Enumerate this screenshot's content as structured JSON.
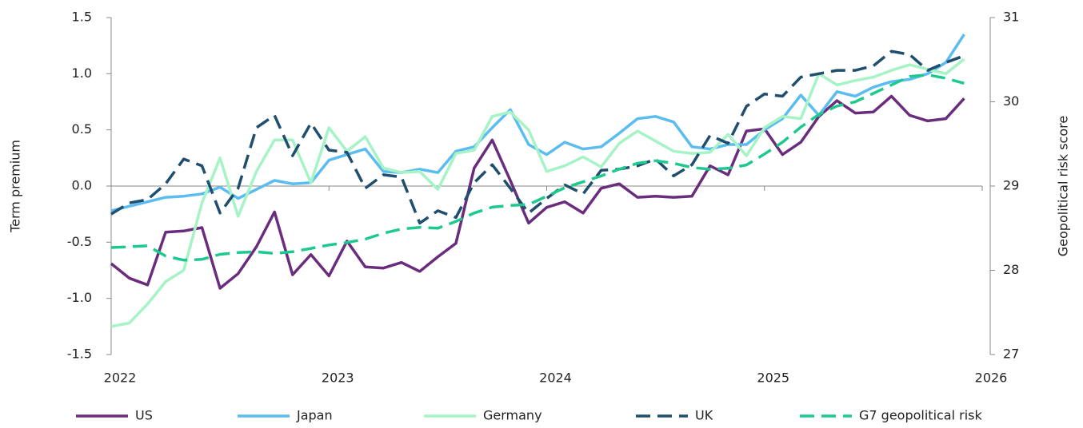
{
  "chart_data": {
    "type": "line",
    "ylabel": "Term premium",
    "y2label": "Geopolitical risk score",
    "x": [
      2022,
      2022.083,
      2022.167,
      2022.25,
      2022.333,
      2022.417,
      2022.5,
      2022.583,
      2022.667,
      2022.75,
      2022.833,
      2022.917,
      2023,
      2023.083,
      2023.167,
      2023.25,
      2023.333,
      2023.417,
      2023.5,
      2023.583,
      2023.667,
      2023.75,
      2023.833,
      2023.917,
      2024,
      2024.083,
      2024.167,
      2024.25,
      2024.333,
      2024.417,
      2024.5,
      2024.583,
      2024.667,
      2024.75,
      2024.833,
      2024.917,
      2025,
      2025.083,
      2025.167,
      2025.25,
      2025.333,
      2025.417,
      2025.5,
      2025.583,
      2025.667,
      2025.75,
      2025.833,
      2025.917
    ],
    "xlim": [
      2022,
      2026
    ],
    "xticks": [
      2022,
      2023,
      2024,
      2025,
      2026
    ],
    "ylim": [
      -1.5,
      1.5
    ],
    "yticks": [
      -1.5,
      {
        "value": -1.0,
        "label": "-1.0"
      },
      -0.5,
      {
        "value": 0,
        "label": "0.0"
      },
      0.5,
      {
        "value": 1.0,
        "label": "1.0"
      },
      1.5
    ],
    "y2lim": [
      27,
      31
    ],
    "y2ticks": [
      27,
      28,
      29,
      30,
      31
    ],
    "series": [
      {
        "name": "US",
        "color": "#6a2d7e",
        "dash": false,
        "values": [
          -0.69,
          -0.82,
          -0.88,
          -0.41,
          -0.4,
          -0.37,
          -0.91,
          -0.78,
          -0.54,
          -0.23,
          -0.79,
          -0.61,
          -0.8,
          -0.49,
          -0.72,
          -0.73,
          -0.68,
          -0.76,
          -0.63,
          -0.51,
          0.16,
          0.41,
          0.05,
          -0.33,
          -0.19,
          -0.14,
          -0.24,
          -0.02,
          0.02,
          -0.1,
          -0.09,
          -0.1,
          -0.09,
          0.18,
          0.1,
          0.49,
          0.51,
          0.28,
          0.39,
          0.62,
          0.76,
          0.65,
          0.66,
          0.8,
          0.63,
          0.58,
          0.6,
          0.78
        ]
      },
      {
        "name": "Japan",
        "color": "#5bbcf0",
        "dash": false,
        "values": [
          -0.22,
          -0.18,
          -0.14,
          -0.1,
          -0.09,
          -0.07,
          -0.01,
          -0.11,
          -0.03,
          0.05,
          0.02,
          0.03,
          0.23,
          0.28,
          0.33,
          0.13,
          0.12,
          0.15,
          0.12,
          0.31,
          0.35,
          0.52,
          0.68,
          0.37,
          0.28,
          0.39,
          0.33,
          0.35,
          0.47,
          0.6,
          0.62,
          0.57,
          0.35,
          0.33,
          0.37,
          0.37,
          0.5,
          0.6,
          0.81,
          0.63,
          0.84,
          0.8,
          0.88,
          0.93,
          0.95,
          1.0,
          1.1,
          1.35
        ]
      },
      {
        "name": "Germany",
        "color": "#a6f3c6",
        "dash": false,
        "values": [
          -1.25,
          -1.22,
          -1.05,
          -0.85,
          -0.75,
          -0.15,
          0.25,
          -0.27,
          0.13,
          0.41,
          0.41,
          0.03,
          0.52,
          0.31,
          0.44,
          0.16,
          0.12,
          0.13,
          -0.03,
          0.29,
          0.32,
          0.62,
          0.66,
          0.5,
          0.13,
          0.18,
          0.26,
          0.17,
          0.38,
          0.49,
          0.4,
          0.31,
          0.29,
          0.3,
          0.46,
          0.27,
          0.52,
          0.62,
          0.6,
          1.0,
          0.9,
          0.94,
          0.97,
          1.03,
          1.08,
          1.04,
          1.0,
          1.13
        ]
      },
      {
        "name": "UK",
        "color": "#1f4e6e",
        "dash": true,
        "values": [
          -0.25,
          -0.15,
          -0.12,
          0.02,
          0.24,
          0.18,
          -0.24,
          -0.02,
          0.52,
          0.63,
          0.27,
          0.56,
          0.32,
          0.3,
          -0.02,
          0.1,
          0.08,
          -0.33,
          -0.22,
          -0.28,
          0.03,
          0.19,
          -0.02,
          -0.24,
          -0.11,
          0.01,
          -0.07,
          0.14,
          0.15,
          0.18,
          0.24,
          0.09,
          0.19,
          0.45,
          0.38,
          0.71,
          0.82,
          0.8,
          0.97,
          1.0,
          1.03,
          1.03,
          1.07,
          1.2,
          1.17,
          1.03,
          1.1,
          1.16
        ]
      },
      {
        "name": "G7 geopolitical risk",
        "color": "#1ec98e",
        "dash": true,
        "axis": "y2",
        "values": [
          28.27,
          28.28,
          28.29,
          28.17,
          28.12,
          28.13,
          28.19,
          28.21,
          28.22,
          28.2,
          28.22,
          28.26,
          28.3,
          28.33,
          28.37,
          28.44,
          28.49,
          28.51,
          28.5,
          28.58,
          28.68,
          28.75,
          28.77,
          28.78,
          28.88,
          28.98,
          29.05,
          29.12,
          29.2,
          29.27,
          29.3,
          29.27,
          29.22,
          29.2,
          29.21,
          29.25,
          29.38,
          29.52,
          29.7,
          29.85,
          29.95,
          30.0,
          30.1,
          30.2,
          30.3,
          30.32,
          30.28,
          30.22
        ]
      }
    ]
  }
}
